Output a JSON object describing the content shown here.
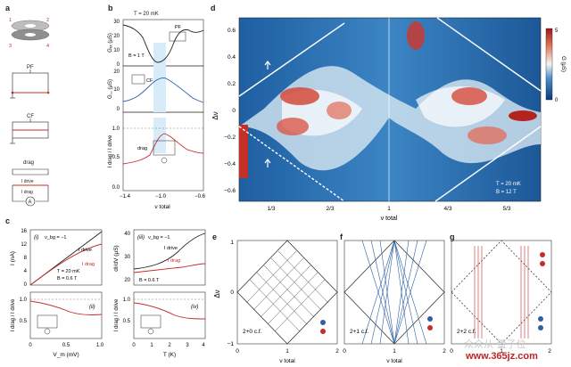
{
  "labels": {
    "a": "a",
    "b": "b",
    "c": "c",
    "d": "d",
    "e": "e",
    "f": "f",
    "g": "g"
  },
  "panel_a": {
    "n1": "1",
    "n2": "2",
    "n3": "3",
    "n4": "4",
    "pf": "PF",
    "cf": "CF",
    "drag": "drag",
    "idrive": "I drive",
    "idrag": "I drag",
    "amp": "A"
  },
  "panel_b": {
    "temp": "T = 20 mK",
    "field": "B = 1 T",
    "ylab1": "Gₓₓ (μS)",
    "ylab2": "G꜀꜀ (μS)",
    "ylab3": "I drag / I drive",
    "pf": "PF",
    "cf": "CF",
    "drag": "drag",
    "xlab": "ν total",
    "yt1": [
      "30",
      "20",
      "10",
      "0"
    ],
    "yt2": [
      "20",
      "10",
      "0"
    ],
    "yt3": [
      "1.0",
      "0.5",
      "0.0"
    ],
    "xt": [
      "−1.4",
      "−1.0",
      "−0.6"
    ]
  },
  "panel_c": {
    "i_label": "(i)",
    "iii_label": "(iii)",
    "ii_label": "(ii)",
    "iv_label": "(iv)",
    "vbg": "ν_bg = −1",
    "idrive": "I drive",
    "idrag": "I drag",
    "temp": "T = 20 mK",
    "field1": "B = 0.6 T",
    "field2": "B = 0.6 T",
    "ylab_i": "I (nA)",
    "ylab_iii": "dI/dV (μS)",
    "ylab_lo": "I drag / I drive",
    "xlab_left": "V_m (mV)",
    "xlab_right": "T (K)",
    "yt_i": [
      "16",
      "12",
      "8",
      "4",
      "0"
    ],
    "yt_iii": [
      "40",
      "30",
      "20"
    ],
    "yt_lo": [
      "1.0",
      "0.5"
    ],
    "xt_left": [
      "0",
      "0.5",
      "1.0"
    ],
    "xt_right": [
      "0",
      "1",
      "2",
      "3",
      "4"
    ]
  },
  "panel_d": {
    "ylab": "Δν",
    "xlab": "ν total",
    "yt": [
      "0.6",
      "0.4",
      "0.2",
      "0",
      "−0.2",
      "−0.4",
      "−0.6"
    ],
    "xt": [
      "1/3",
      "2/3",
      "1",
      "4/3",
      "5/3"
    ],
    "cbar_title": "G (μS)",
    "cbar_max": "5",
    "cbar_min": "0",
    "temp": "T = 20 mK",
    "field": "B = 12 T"
  },
  "panel_efg": {
    "ylab": "Δν",
    "yt": [
      "1",
      "0",
      "−1"
    ],
    "xt": [
      "0",
      "1",
      "2"
    ],
    "xlab": "ν total",
    "e_cf": "2+0  c.f.",
    "f_cf": "2+1  c.f.",
    "g_cf": "2+2  c.f."
  },
  "watermark": {
    "brand": "众众从·量子位",
    "url": "www.365jz.com"
  },
  "colors": {
    "red": "#c62c2c",
    "blue": "#2f5fa8",
    "black": "#222222",
    "cmap_low": "#0b3a78",
    "cmap_high": "#9e1618"
  }
}
